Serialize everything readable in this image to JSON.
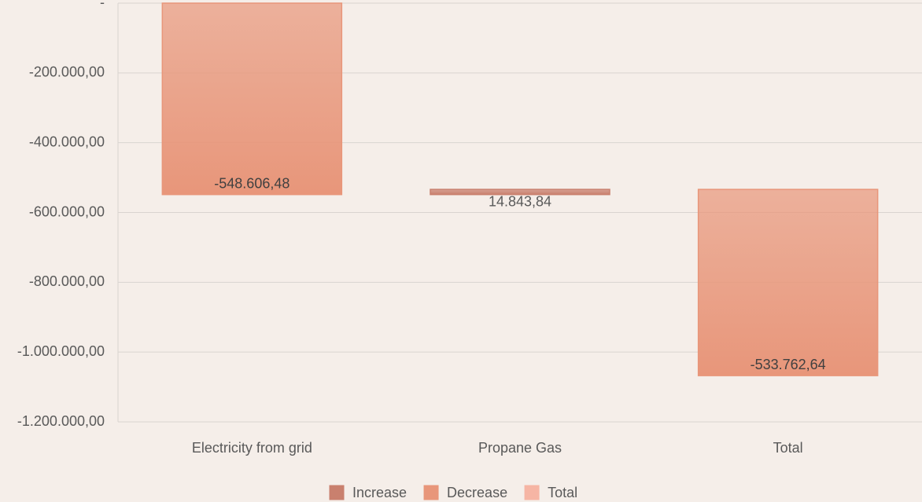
{
  "chart_data": {
    "type": "waterfall",
    "categories": [
      "Electricity from grid",
      "Propane Gas",
      "Total"
    ],
    "values": [
      -548606.48,
      14843.84,
      -533762.64
    ],
    "value_labels": [
      "-548.606,48",
      "14.843,84",
      "-533.762,64"
    ],
    "colors": [
      "#e8967a",
      "#c9806e",
      "#e8967a"
    ],
    "legend": [
      {
        "name": "Increase",
        "color": "#c9806e"
      },
      {
        "name": "Decrease",
        "color": "#e8967a"
      },
      {
        "name": "Total",
        "color": "#f6b5a4"
      }
    ],
    "ylim": [
      -1200000,
      0
    ],
    "yticks": [
      {
        "value": 0,
        "label": "-"
      },
      {
        "value": -200000,
        "label": "-200.000,00"
      },
      {
        "value": -400000,
        "label": "-400.000,00"
      },
      {
        "value": -600000,
        "label": "-600.000,00"
      },
      {
        "value": -800000,
        "label": "-800.000,00"
      },
      {
        "value": -1000000,
        "label": "-1.000.000,00"
      },
      {
        "value": -1200000,
        "label": "-1.200.000,00"
      }
    ],
    "grid": true
  }
}
